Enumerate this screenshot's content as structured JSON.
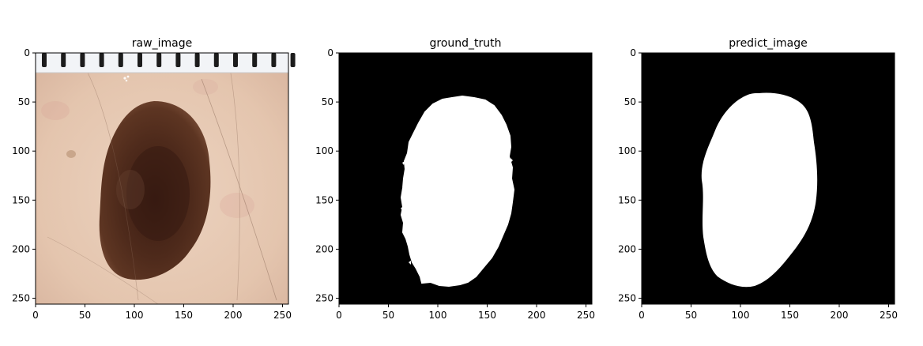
{
  "chart_data": [
    {
      "type": "image",
      "title": "raw_image",
      "content": "dermoscopy image: dark brown pigmented skin lesion on light pink skin, ruler tick marks across the top",
      "xlim": [
        0,
        256
      ],
      "ylim": [
        256,
        0
      ],
      "x_ticks": [
        0,
        50,
        100,
        150,
        200,
        250
      ],
      "y_ticks": [
        0,
        50,
        100,
        150,
        200,
        250
      ],
      "colors": {
        "skin": "#e6c9b4",
        "lesion": "#4e2a1b",
        "lesion_core": "#3a1c12",
        "ruler": "#f2f4f7",
        "ruler_mark": "#1c1c1c"
      }
    },
    {
      "type": "image",
      "title": "ground_truth",
      "content": "binary segmentation mask: irregular white blob with rough edge on black background",
      "xlim": [
        0,
        256
      ],
      "ylim": [
        256,
        0
      ],
      "x_ticks": [
        0,
        50,
        100,
        150,
        200,
        250
      ],
      "y_ticks": [
        0,
        50,
        100,
        150,
        200,
        250
      ],
      "colors": {
        "background": "#000000",
        "mask": "#ffffff"
      }
    },
    {
      "type": "image",
      "title": "predict_image",
      "content": "predicted segmentation mask: smooth white blob on black background",
      "xlim": [
        0,
        256
      ],
      "ylim": [
        256,
        0
      ],
      "x_ticks": [
        0,
        50,
        100,
        150,
        200,
        250
      ],
      "y_ticks": [
        0,
        50,
        100,
        150,
        200,
        250
      ],
      "colors": {
        "background": "#000000",
        "mask": "#ffffff"
      }
    }
  ]
}
